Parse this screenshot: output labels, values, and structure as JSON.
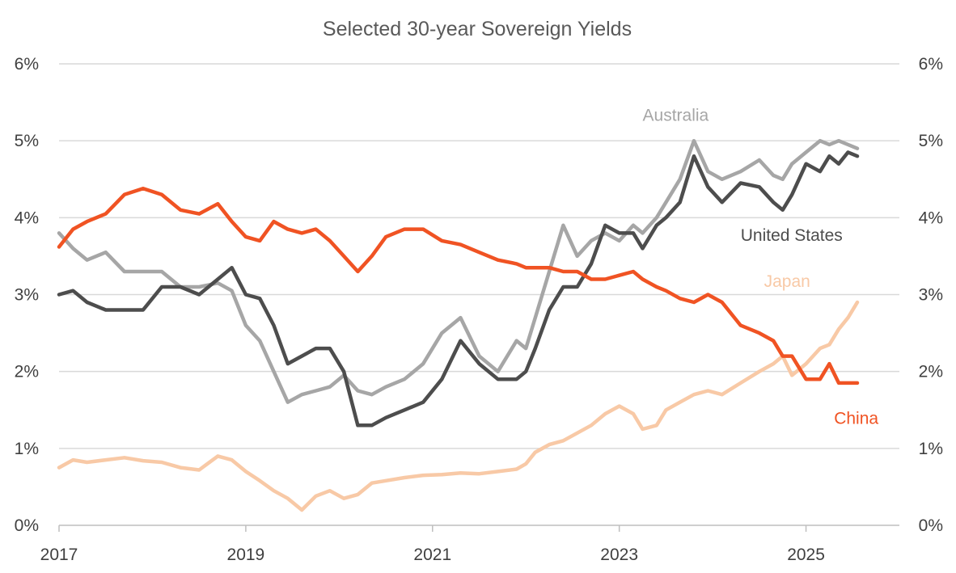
{
  "chart_data": {
    "type": "line",
    "title": "Selected 30-year Sovereign Yields",
    "y_ticks": [
      "0%",
      "1%",
      "2%",
      "3%",
      "4%",
      "5%",
      "6%"
    ],
    "y_ticks_right": [
      "0%",
      "1%",
      "2%",
      "3%",
      "4%",
      "5%",
      "6%"
    ],
    "x_ticks": [
      "2017",
      "2019",
      "2021",
      "2023",
      "2025"
    ],
    "x_tick_values": [
      2017,
      2019,
      2021,
      2023,
      2025
    ],
    "xlim": [
      2017,
      2026
    ],
    "ylim": [
      0,
      6
    ],
    "grid": true,
    "series": [
      {
        "name": "Japan",
        "color": "#f8c9a6",
        "x": [
          2017.0,
          2017.15,
          2017.3,
          2017.5,
          2017.7,
          2017.9,
          2018.1,
          2018.3,
          2018.5,
          2018.7,
          2018.85,
          2019.0,
          2019.15,
          2019.3,
          2019.45,
          2019.6,
          2019.75,
          2019.9,
          2020.05,
          2020.2,
          2020.35,
          2020.5,
          2020.7,
          2020.9,
          2021.1,
          2021.3,
          2021.5,
          2021.7,
          2021.9,
          2022.0,
          2022.1,
          2022.25,
          2022.4,
          2022.55,
          2022.7,
          2022.85,
          2023.0,
          2023.15,
          2023.25,
          2023.4,
          2023.5,
          2023.65,
          2023.8,
          2023.95,
          2024.1,
          2024.3,
          2024.5,
          2024.65,
          2024.75,
          2024.85,
          2025.0,
          2025.15,
          2025.25,
          2025.35,
          2025.45,
          2025.55
        ],
        "values": [
          0.75,
          0.85,
          0.82,
          0.85,
          0.88,
          0.84,
          0.82,
          0.75,
          0.72,
          0.9,
          0.85,
          0.7,
          0.58,
          0.45,
          0.35,
          0.2,
          0.38,
          0.45,
          0.35,
          0.4,
          0.55,
          0.58,
          0.62,
          0.65,
          0.66,
          0.68,
          0.67,
          0.7,
          0.73,
          0.8,
          0.95,
          1.05,
          1.1,
          1.2,
          1.3,
          1.45,
          1.55,
          1.45,
          1.25,
          1.3,
          1.5,
          1.6,
          1.7,
          1.75,
          1.7,
          1.85,
          2.0,
          2.1,
          2.2,
          1.95,
          2.1,
          2.3,
          2.35,
          2.55,
          2.7,
          2.9
        ]
      },
      {
        "name": "Australia",
        "color": "#a6a6a6",
        "x": [
          2017.0,
          2017.15,
          2017.3,
          2017.5,
          2017.7,
          2017.9,
          2018.1,
          2018.3,
          2018.5,
          2018.7,
          2018.85,
          2019.0,
          2019.15,
          2019.3,
          2019.45,
          2019.6,
          2019.75,
          2019.9,
          2020.05,
          2020.2,
          2020.35,
          2020.5,
          2020.7,
          2020.9,
          2021.1,
          2021.3,
          2021.5,
          2021.7,
          2021.9,
          2022.0,
          2022.1,
          2022.25,
          2022.4,
          2022.55,
          2022.7,
          2022.85,
          2023.0,
          2023.15,
          2023.25,
          2023.4,
          2023.5,
          2023.65,
          2023.8,
          2023.95,
          2024.1,
          2024.3,
          2024.5,
          2024.65,
          2024.75,
          2024.85,
          2025.0,
          2025.15,
          2025.25,
          2025.35,
          2025.45,
          2025.55
        ],
        "values": [
          3.8,
          3.6,
          3.45,
          3.55,
          3.3,
          3.3,
          3.3,
          3.1,
          3.1,
          3.15,
          3.05,
          2.6,
          2.4,
          2.0,
          1.6,
          1.7,
          1.75,
          1.8,
          1.95,
          1.75,
          1.7,
          1.8,
          1.9,
          2.1,
          2.5,
          2.7,
          2.2,
          2.0,
          2.4,
          2.3,
          2.7,
          3.3,
          3.9,
          3.5,
          3.7,
          3.8,
          3.7,
          3.9,
          3.8,
          4.0,
          4.2,
          4.5,
          5.0,
          4.6,
          4.5,
          4.6,
          4.75,
          4.55,
          4.5,
          4.7,
          4.85,
          5.0,
          4.95,
          5.0,
          4.95,
          4.9
        ]
      },
      {
        "name": "United States",
        "color": "#4d4d4d",
        "x": [
          2017.0,
          2017.15,
          2017.3,
          2017.5,
          2017.7,
          2017.9,
          2018.1,
          2018.3,
          2018.5,
          2018.7,
          2018.85,
          2019.0,
          2019.15,
          2019.3,
          2019.45,
          2019.6,
          2019.75,
          2019.9,
          2020.05,
          2020.2,
          2020.35,
          2020.5,
          2020.7,
          2020.9,
          2021.1,
          2021.3,
          2021.5,
          2021.7,
          2021.9,
          2022.0,
          2022.1,
          2022.25,
          2022.4,
          2022.55,
          2022.7,
          2022.85,
          2023.0,
          2023.15,
          2023.25,
          2023.4,
          2023.5,
          2023.65,
          2023.8,
          2023.95,
          2024.1,
          2024.3,
          2024.5,
          2024.65,
          2024.75,
          2024.85,
          2025.0,
          2025.15,
          2025.25,
          2025.35,
          2025.45,
          2025.55
        ],
        "values": [
          3.0,
          3.05,
          2.9,
          2.8,
          2.8,
          2.8,
          3.1,
          3.1,
          3.0,
          3.2,
          3.35,
          3.0,
          2.95,
          2.6,
          2.1,
          2.2,
          2.3,
          2.3,
          2.0,
          1.3,
          1.3,
          1.4,
          1.5,
          1.6,
          1.9,
          2.4,
          2.1,
          1.9,
          1.9,
          2.0,
          2.3,
          2.8,
          3.1,
          3.1,
          3.4,
          3.9,
          3.8,
          3.8,
          3.6,
          3.9,
          4.0,
          4.2,
          4.8,
          4.4,
          4.2,
          4.45,
          4.4,
          4.2,
          4.1,
          4.3,
          4.7,
          4.6,
          4.8,
          4.7,
          4.85,
          4.8
        ]
      },
      {
        "name": "China",
        "color": "#f05323",
        "x": [
          2017.0,
          2017.15,
          2017.3,
          2017.5,
          2017.7,
          2017.9,
          2018.1,
          2018.3,
          2018.5,
          2018.7,
          2018.85,
          2019.0,
          2019.15,
          2019.3,
          2019.45,
          2019.6,
          2019.75,
          2019.9,
          2020.05,
          2020.2,
          2020.35,
          2020.5,
          2020.7,
          2020.9,
          2021.1,
          2021.3,
          2021.5,
          2021.7,
          2021.9,
          2022.0,
          2022.1,
          2022.25,
          2022.4,
          2022.55,
          2022.7,
          2022.85,
          2023.0,
          2023.15,
          2023.25,
          2023.4,
          2023.5,
          2023.65,
          2023.8,
          2023.95,
          2024.1,
          2024.3,
          2024.5,
          2024.65,
          2024.75,
          2024.85,
          2025.0,
          2025.15,
          2025.25,
          2025.35,
          2025.45,
          2025.55
        ],
        "values": [
          3.62,
          3.85,
          3.95,
          4.05,
          4.3,
          4.38,
          4.3,
          4.1,
          4.05,
          4.18,
          3.95,
          3.75,
          3.7,
          3.95,
          3.85,
          3.8,
          3.85,
          3.7,
          3.5,
          3.3,
          3.5,
          3.75,
          3.85,
          3.85,
          3.7,
          3.65,
          3.55,
          3.45,
          3.4,
          3.35,
          3.35,
          3.35,
          3.3,
          3.3,
          3.2,
          3.2,
          3.25,
          3.3,
          3.2,
          3.1,
          3.05,
          2.95,
          2.9,
          3.0,
          2.9,
          2.6,
          2.5,
          2.4,
          2.2,
          2.2,
          1.9,
          1.9,
          2.1,
          1.85,
          1.85,
          1.85
        ]
      }
    ],
    "annotations": [
      {
        "text": "Australia",
        "series": "Australia",
        "x": 2023.25,
        "y": 5.26
      },
      {
        "text": "United States",
        "series": "United States",
        "x": 2024.3,
        "y": 3.7
      },
      {
        "text": "Japan",
        "series": "Japan",
        "x": 2024.55,
        "y": 3.1
      },
      {
        "text": "China",
        "series": "China",
        "x": 2025.3,
        "y": 1.32
      }
    ]
  }
}
